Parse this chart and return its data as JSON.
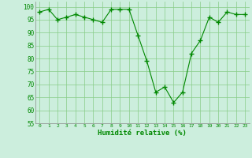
{
  "x": [
    0,
    1,
    2,
    3,
    4,
    5,
    6,
    7,
    8,
    9,
    10,
    11,
    12,
    13,
    14,
    15,
    16,
    17,
    18,
    19,
    20,
    21,
    22,
    23
  ],
  "y": [
    98,
    99,
    95,
    96,
    97,
    96,
    95,
    94,
    99,
    99,
    99,
    89,
    79,
    67,
    69,
    63,
    67,
    82,
    87,
    96,
    94,
    98,
    97,
    97
  ],
  "line_color": "#008800",
  "marker_color": "#008800",
  "bg_color": "#cceedd",
  "grid_color": "#88cc88",
  "xlabel": "Humidité relative (%)",
  "xlabel_color": "#008800",
  "ylim": [
    55,
    102
  ],
  "yticks": [
    55,
    60,
    65,
    70,
    75,
    80,
    85,
    90,
    95,
    100
  ],
  "xticks": [
    0,
    1,
    2,
    3,
    4,
    5,
    6,
    7,
    8,
    9,
    10,
    11,
    12,
    13,
    14,
    15,
    16,
    17,
    18,
    19,
    20,
    21,
    22,
    23
  ],
  "figsize": [
    3.2,
    2.0
  ],
  "dpi": 100
}
